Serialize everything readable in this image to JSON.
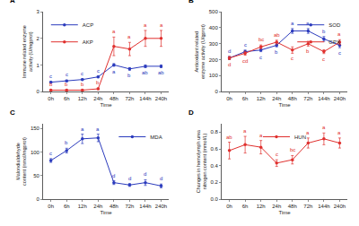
{
  "chart_data": [
    {
      "type": "line",
      "title": "A",
      "x_label": "Time",
      "y_label": "Immune related enzyme activity (U/mgprot)",
      "categories": [
        "0h",
        "6h",
        "12h",
        "24h",
        "48h",
        "72h",
        "144h",
        "240h"
      ],
      "ylim": [
        0,
        3
      ],
      "yticks": [
        0,
        1,
        2,
        3
      ],
      "legend": "top left",
      "marker": "circle",
      "line_style": "solid",
      "series": [
        {
          "name": "ACP",
          "color": "#2b3bbd",
          "values": [
            0.35,
            0.4,
            0.45,
            0.55,
            1.0,
            0.85,
            0.95,
            0.95
          ],
          "errors": [
            0.03,
            0.03,
            0.03,
            0.03,
            0.05,
            0.05,
            0.05,
            0.05
          ],
          "letters": [
            "c",
            "c",
            "c",
            "c",
            "a",
            "b",
            "ab",
            "ab"
          ]
        },
        {
          "name": "AKP",
          "color": "#e0302e",
          "values": [
            0.05,
            0.05,
            0.05,
            0.1,
            1.7,
            1.6,
            2.0,
            2.0
          ],
          "errors": [
            0.02,
            0.02,
            0.02,
            0.03,
            0.35,
            0.25,
            0.3,
            0.3
          ],
          "letters": [
            "b",
            "b",
            "b",
            "b",
            "a",
            "a",
            "a",
            "a"
          ]
        }
      ]
    },
    {
      "type": "line",
      "title": "B",
      "x_label": "Time",
      "y_label": "Antioxidant related enzyme activity (U/gprot)",
      "categories": [
        "0h",
        "6h",
        "12h",
        "24h",
        "48h",
        "72h",
        "144h",
        "240h"
      ],
      "ylim": [
        0,
        500
      ],
      "yticks": [
        0,
        100,
        200,
        300,
        400,
        500
      ],
      "legend": "top right",
      "marker": "circle",
      "line_style": "solid",
      "series": [
        {
          "name": "SOD",
          "color": "#2b3bbd",
          "values": [
            210,
            250,
            260,
            290,
            380,
            380,
            330,
            290
          ],
          "errors": [
            10,
            10,
            10,
            10,
            15,
            15,
            15,
            15
          ],
          "letters": [
            "d",
            "c",
            "c",
            "b",
            "a",
            "a",
            "b",
            "c"
          ]
        },
        {
          "name": "GPX",
          "color": "#e0302e",
          "values": [
            210,
            240,
            280,
            310,
            260,
            300,
            250,
            310
          ],
          "errors": [
            10,
            12,
            12,
            12,
            20,
            15,
            12,
            15
          ],
          "letters": [
            "d",
            "cd",
            "bc",
            "ab",
            "c",
            "b",
            "c",
            "a"
          ]
        }
      ]
    },
    {
      "type": "line",
      "title": "C",
      "x_label": "Time",
      "y_label": "Malondialdehyde content (nmol/mgprot)",
      "categories": [
        "0h",
        "6h",
        "12h",
        "24h",
        "48h",
        "72h",
        "144h",
        "240h"
      ],
      "ylim": [
        0,
        160
      ],
      "yticks": [
        0,
        50,
        100,
        150
      ],
      "legend": "top right",
      "marker": "circle",
      "line_style": "solid",
      "series": [
        {
          "name": "MDA",
          "color": "#2b3bbd",
          "values": [
            82,
            103,
            128,
            130,
            35,
            30,
            35,
            28
          ],
          "errors": [
            4,
            5,
            10,
            8,
            4,
            3,
            6,
            4
          ],
          "letters": [
            "c",
            "b",
            "a",
            "a",
            "d",
            "d",
            "d",
            "d"
          ]
        }
      ]
    },
    {
      "type": "line",
      "title": "D",
      "x_label": "Time",
      "y_label": "Changes in hemolymph urea nitrogen content (mmol/L)",
      "categories": [
        "0h",
        "6h",
        "12h",
        "24h",
        "48h",
        "72h",
        "144h",
        "240h"
      ],
      "ylim": [
        0,
        0.9
      ],
      "yticks": [
        {
          "value": 0,
          "label": "0.0"
        },
        0.2,
        0.4,
        0.6,
        0.8
      ],
      "legend": "top center",
      "marker": "circle",
      "line_style": "solid",
      "series": [
        {
          "name": "HUN",
          "color": "#e0302e",
          "values": [
            0.58,
            0.65,
            0.62,
            0.43,
            0.47,
            0.67,
            0.72,
            0.67
          ],
          "errors": [
            0.1,
            0.1,
            0.08,
            0.04,
            0.05,
            0.06,
            0.07,
            0.06
          ],
          "letters": [
            "ab",
            "a",
            "a",
            "c",
            "bc",
            "a",
            "a",
            "a"
          ]
        }
      ]
    }
  ]
}
